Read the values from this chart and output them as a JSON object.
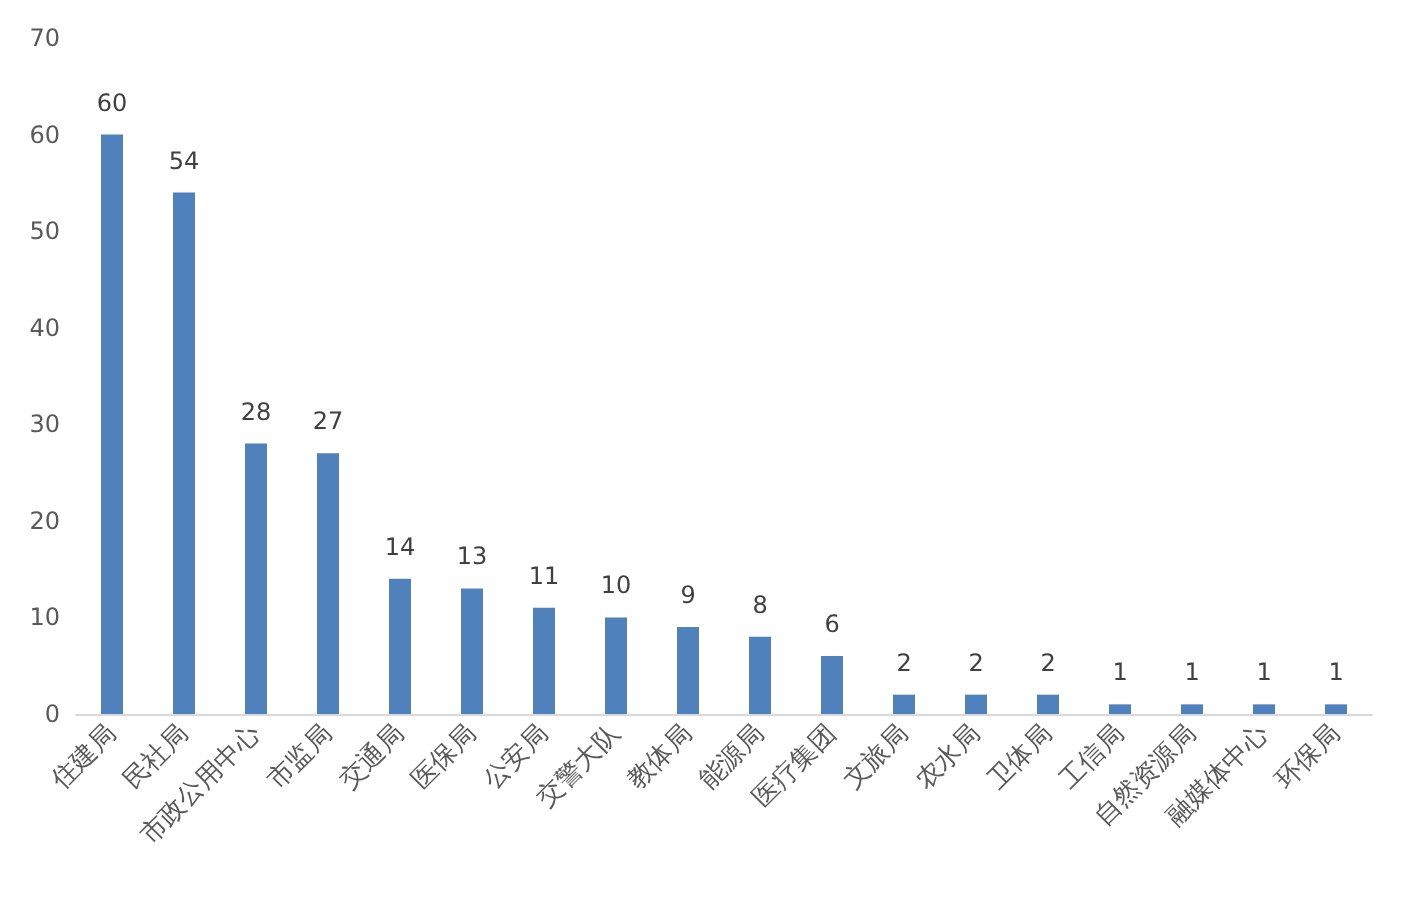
{
  "chart_data": {
    "type": "bar",
    "categories": [
      "住建局",
      "民社局",
      "市政公用中心",
      "市监局",
      "交通局",
      "医保局",
      "公安局",
      "交警大队",
      "教体局",
      "能源局",
      "医疗集团",
      "文旅局",
      "农水局",
      "卫体局",
      "工信局",
      "自然资源局",
      "融媒体中心",
      "环保局"
    ],
    "values": [
      60,
      54,
      28,
      27,
      14,
      13,
      11,
      10,
      9,
      8,
      6,
      2,
      2,
      2,
      1,
      1,
      1,
      1
    ],
    "color": "#4f81bd",
    "ylim": [
      0,
      70
    ],
    "yticks": [
      0,
      10,
      20,
      30,
      40,
      50,
      60,
      70
    ],
    "data_labels": true
  }
}
